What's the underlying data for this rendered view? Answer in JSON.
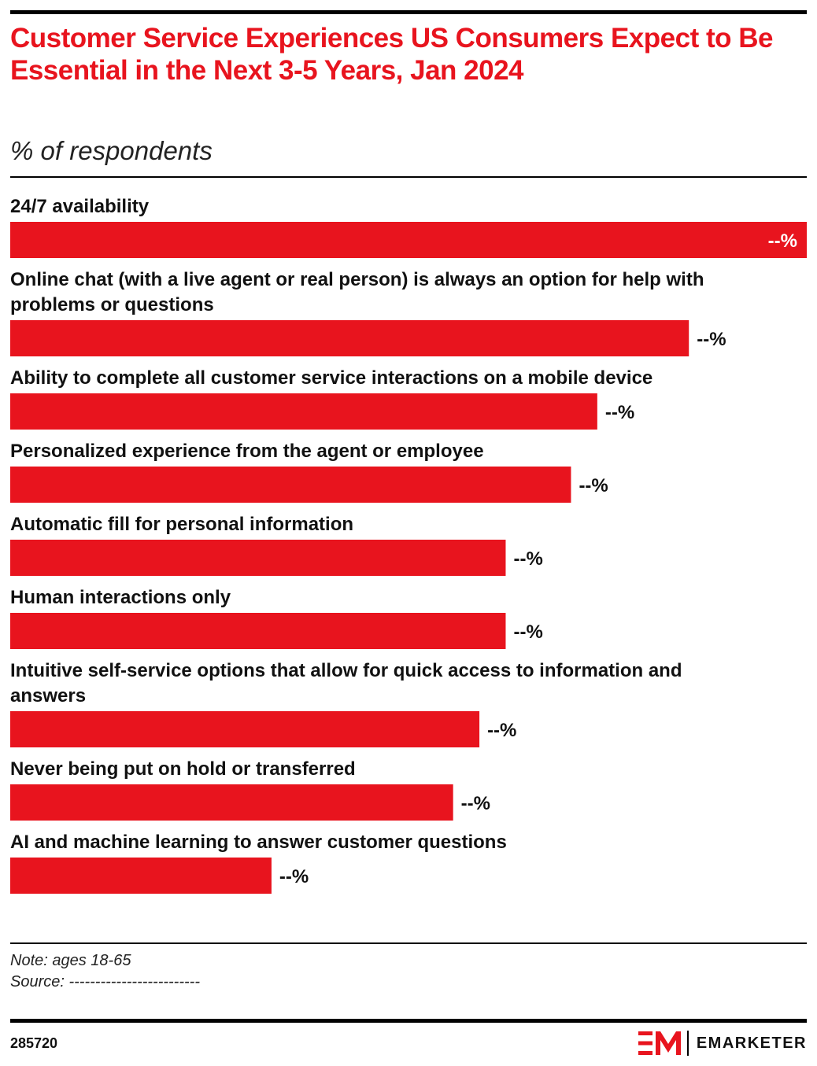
{
  "chart_data": {
    "type": "bar",
    "orientation": "horizontal",
    "title": "Customer Service Experiences US Consumers Expect to Be Essential in the Next 3-5 Years, Jan 2024",
    "subtitle": "% of respondents",
    "categories": [
      "24/7 availability",
      "Online chat (with a live agent or real person) is always an option for help with problems or questions",
      "Ability to complete all customer service interactions on a mobile device",
      "Personalized experience from the agent or employee",
      "Automatic fill for personal information",
      "Human interactions only",
      "Intuitive self-service options that allow for quick access to information and answers",
      "Never being put on hold or transferred",
      "AI and machine learning to answer customer questions"
    ],
    "values": [
      100,
      85.2,
      73.7,
      70.4,
      62.2,
      62.2,
      58.9,
      55.6,
      32.8
    ],
    "value_labels": [
      "--%",
      "--%",
      "--%",
      "--%",
      "--%",
      "--%",
      "--%",
      "--%",
      "--%"
    ],
    "xlim": [
      0,
      100
    ],
    "bar_color": "#e8141e",
    "grid": false,
    "legend": "none"
  },
  "note": "Note: ages 18-65",
  "source": "Source: -------------------------",
  "chart_id": "285720",
  "brand": "EMARKETER",
  "colors": {
    "accent": "#e8141e",
    "text": "#111111",
    "rule": "#000000"
  }
}
